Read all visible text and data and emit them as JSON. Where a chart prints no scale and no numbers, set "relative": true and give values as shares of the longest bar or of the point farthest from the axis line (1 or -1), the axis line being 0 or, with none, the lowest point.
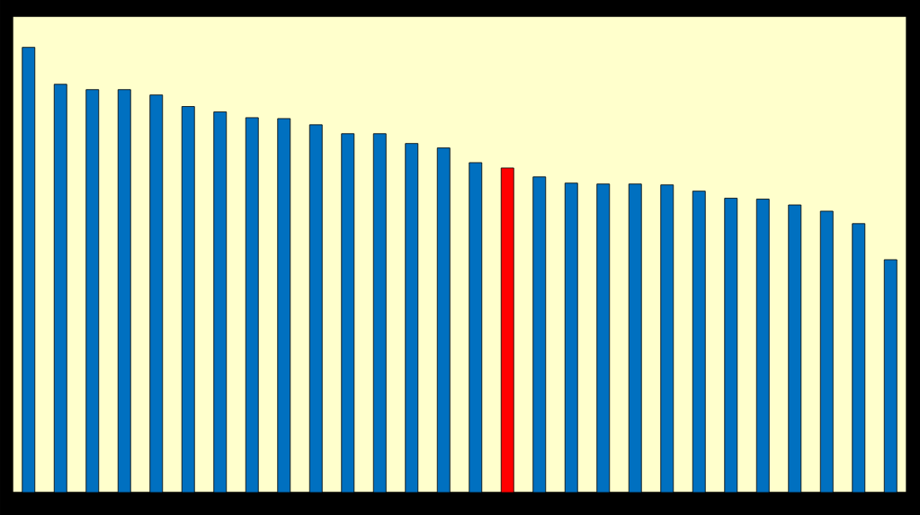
{
  "chart_data": {
    "type": "bar",
    "relative": true,
    "categories": [
      null,
      null,
      null,
      null,
      null,
      null,
      null,
      null,
      null,
      null,
      null,
      null,
      null,
      null,
      null,
      null,
      null,
      null,
      null,
      null,
      null,
      null,
      null,
      null,
      null,
      null,
      null,
      null
    ],
    "values": [
      1,
      0.917,
      0.905,
      0.905,
      0.893,
      0.867,
      0.855,
      0.842,
      0.84,
      0.826,
      0.806,
      0.806,
      0.784,
      0.774,
      0.741,
      0.729,
      0.709,
      0.695,
      0.693,
      0.693,
      0.691,
      0.677,
      0.661,
      0.659,
      0.646,
      0.632,
      0.604,
      0.523
    ],
    "colors": [
      "#0070c0",
      "#0070c0",
      "#0070c0",
      "#0070c0",
      "#0070c0",
      "#0070c0",
      "#0070c0",
      "#0070c0",
      "#0070c0",
      "#0070c0",
      "#0070c0",
      "#0070c0",
      "#0070c0",
      "#0070c0",
      "#0070c0",
      "#ff0000",
      "#0070c0",
      "#0070c0",
      "#0070c0",
      "#0070c0",
      "#0070c0",
      "#0070c0",
      "#0070c0",
      "#0070c0",
      "#0070c0",
      "#0070c0",
      "#0070c0",
      "#0070c0"
    ]
  }
}
